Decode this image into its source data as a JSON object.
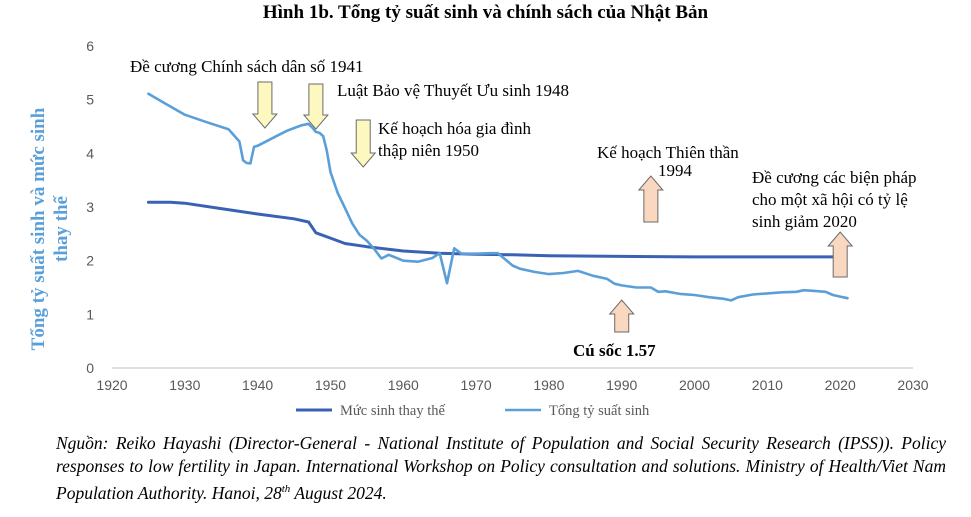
{
  "title": "Hình 1b. Tổng tỷ suất sinh và chính sách của Nhật Bản",
  "colors": {
    "replacement": "#3a62b4",
    "tfr": "#5b9fd8",
    "ylabel": "#5b9fd8",
    "arrow_up_fill": "#fad7bf",
    "arrow_down_fill": "#fdf8c0",
    "axis_text": "#595959"
  },
  "chart_data": {
    "type": "line",
    "title": "Hình 1b. Tổng tỷ suất sinh và chính sách của Nhật Bản",
    "xlabel": "",
    "ylabel": "Tổng tỷ suất sinh và mức sinh thay thế",
    "xlim": [
      1920,
      2030
    ],
    "ylim": [
      0,
      6
    ],
    "xticks": [
      1920,
      1930,
      1940,
      1950,
      1960,
      1970,
      1980,
      1990,
      2000,
      2010,
      2020,
      2030
    ],
    "yticks": [
      0,
      1,
      2,
      3,
      4,
      5,
      6
    ],
    "grid": false,
    "legend": "bottom",
    "series": [
      {
        "name": "Mức sinh thay thế",
        "x": [
          1925,
          1928,
          1930,
          1935,
          1940,
          1945,
          1947,
          1948,
          1950,
          1952,
          1955,
          1960,
          1965,
          1970,
          1975,
          1980,
          1990,
          2000,
          2010,
          2020
        ],
        "y": [
          3.09,
          3.09,
          3.07,
          2.97,
          2.87,
          2.78,
          2.72,
          2.52,
          2.42,
          2.32,
          2.26,
          2.18,
          2.14,
          2.12,
          2.11,
          2.09,
          2.08,
          2.07,
          2.07,
          2.07
        ]
      },
      {
        "name": "Tổng tỷ suất sinh",
        "x": [
          1925,
          1927,
          1930,
          1933,
          1936,
          1937.5,
          1938,
          1938.5,
          1939,
          1939.5,
          1940,
          1942,
          1944,
          1946,
          1947,
          1947.5,
          1948,
          1948.5,
          1949,
          1949.5,
          1950,
          1951,
          1952,
          1953,
          1954,
          1955,
          1956,
          1957,
          1958,
          1960,
          1962,
          1964,
          1965,
          1966,
          1967,
          1968,
          1970,
          1972,
          1973,
          1975,
          1976,
          1978,
          1980,
          1982,
          1984,
          1986,
          1988,
          1989,
          1990,
          1992,
          1994,
          1995,
          1996,
          1998,
          2000,
          2002,
          2004,
          2005,
          2006,
          2008,
          2010,
          2012,
          2014,
          2015,
          2016,
          2018,
          2019,
          2020,
          2021
        ],
        "y": [
          5.11,
          4.95,
          4.72,
          4.58,
          4.45,
          4.22,
          3.87,
          3.82,
          3.81,
          4.12,
          4.14,
          4.28,
          4.42,
          4.52,
          4.55,
          4.48,
          4.4,
          4.38,
          4.32,
          4.05,
          3.65,
          3.26,
          2.98,
          2.69,
          2.48,
          2.37,
          2.22,
          2.04,
          2.11,
          2.0,
          1.98,
          2.05,
          2.14,
          1.58,
          2.23,
          2.13,
          2.13,
          2.14,
          2.14,
          1.91,
          1.85,
          1.79,
          1.75,
          1.77,
          1.81,
          1.72,
          1.66,
          1.57,
          1.54,
          1.5,
          1.5,
          1.42,
          1.43,
          1.38,
          1.36,
          1.32,
          1.29,
          1.26,
          1.32,
          1.37,
          1.39,
          1.41,
          1.42,
          1.45,
          1.44,
          1.42,
          1.36,
          1.33,
          1.3
        ]
      }
    ],
    "annotations": [
      {
        "id": "policy1941",
        "lines": [
          "Đề cương Chính sách dân số 1941"
        ],
        "year": 1941,
        "direction": "down",
        "bold": false
      },
      {
        "id": "law1948",
        "lines": [
          "Luật Bảo vệ Thuyết Ưu sinh 1948"
        ],
        "year": 1948,
        "direction": "down",
        "bold": false
      },
      {
        "id": "plan1950",
        "lines": [
          "Kế hoạch hóa gia đình",
          "thập niên 1950"
        ],
        "year": 1954.5,
        "direction": "down",
        "bold": false
      },
      {
        "id": "angel1994",
        "lines": [
          "Kế hoạch Thiên thần",
          "1994"
        ],
        "year": 1994,
        "direction": "up",
        "bold": false
      },
      {
        "id": "outline2020",
        "lines": [
          "Đề cương các biện pháp",
          "cho một xã hội có tỷ lệ",
          "sinh giảm 2020"
        ],
        "year": 2020,
        "direction": "up",
        "bold": false
      },
      {
        "id": "shock157",
        "lines": [
          "Cú sốc 1.57"
        ],
        "year": 1990,
        "direction": "up",
        "bold": true
      }
    ]
  },
  "source_note": {
    "main": "Nguồn: Reiko Hayashi (Director-General - National Institute of Population and Social Security Research (IPSS)). Policy responses to low fertility in Japan. International Workshop on Policy consultation and solutions. Ministry of Health/Viet Nam Population Authority. Hanoi, 28",
    "sup": "th",
    "tail": " August 2024."
  }
}
